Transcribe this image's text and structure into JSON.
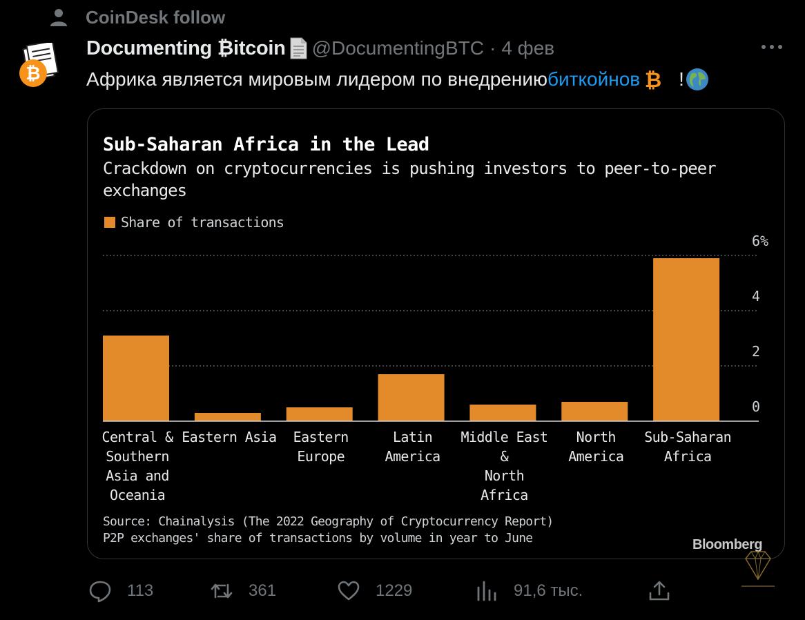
{
  "context": {
    "label": "CoinDesk follow",
    "icon": "person-icon"
  },
  "author": {
    "name": "Documenting ₿itcoin",
    "handle": "@DocumentingBTC",
    "separator": "·",
    "date": "4 фев"
  },
  "tweet": {
    "text_before": "Африка является мировым лидером по внедрению ",
    "link": "биткойнов",
    "text_after": "!"
  },
  "card": {
    "title": "Sub-Saharan Africa in the Lead",
    "subtitle": "Crackdown on cryptocurrencies is pushing investors to peer-to-peer exchanges",
    "source_line1": "Source: Chainalysis (The 2022 Geography of Cryptocurrency Report)",
    "source_line2": "P2P exchanges' share of transactions by volume in year to June",
    "brand": "Bloomberg"
  },
  "chart_data": {
    "type": "bar",
    "categories": [
      [
        "Central &",
        "Southern",
        "Asia and",
        "Oceania"
      ],
      [
        "Eastern Asia"
      ],
      [
        "Eastern",
        "Europe"
      ],
      [
        "Latin",
        "America"
      ],
      [
        "Middle East",
        "&",
        "North",
        "Africa"
      ],
      [
        "North",
        "America"
      ],
      [
        "Sub-Saharan",
        "Africa"
      ]
    ],
    "series": [
      {
        "name": "Share of transactions",
        "values": [
          3.1,
          0.3,
          0.5,
          1.7,
          0.6,
          0.7,
          5.9
        ]
      }
    ],
    "yticks": [
      "0",
      "2",
      "4",
      "6%"
    ],
    "ytick_values": [
      0,
      2,
      4,
      6
    ],
    "ylim": [
      0,
      6
    ],
    "grid": true,
    "legend": "top-left",
    "bar_color": "#e38a2b"
  },
  "actions": {
    "replies": "113",
    "retweets": "361",
    "likes": "1229",
    "views": "91,6 тыс."
  },
  "colors": {
    "link": "#1d9bf0",
    "muted": "#71767b",
    "bar": "#e38a2b"
  }
}
